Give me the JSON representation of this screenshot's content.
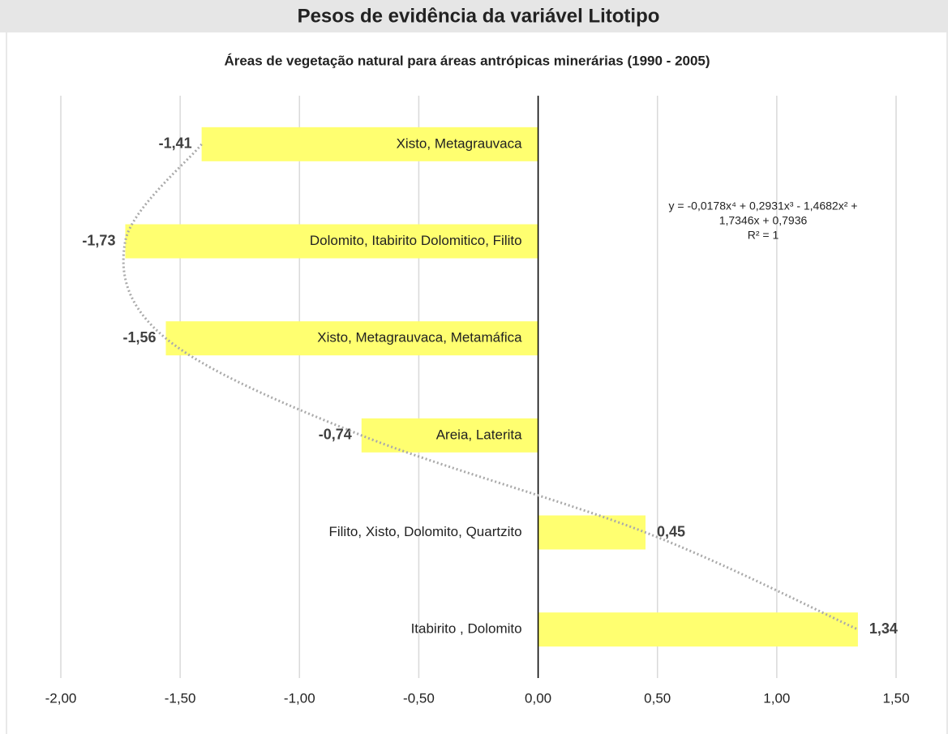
{
  "chart_data": {
    "type": "bar",
    "orientation": "horizontal",
    "title": "Pesos de evidência da variável Litotipo",
    "subtitle": "Áreas de vegetação natural para áreas antrópicas minerárias  (1990 - 2005)",
    "categories": [
      "Xisto, Metagrauvaca",
      "Dolomito, Itabirito Dolomitico, Filito",
      "Xisto, Metagrauvaca, Metamáfica",
      "Areia,  Laterita",
      "Filito, Xisto, Dolomito, Quartzito",
      "Itabirito , Dolomito"
    ],
    "values": [
      -1.41,
      -1.73,
      -1.56,
      -0.74,
      0.45,
      1.34
    ],
    "value_labels": [
      "-1,41",
      "-1,73",
      "-1,56",
      "-0,74",
      "0,45",
      "1,34"
    ],
    "color": "#ffff70",
    "xlim": [
      -2,
      1.5
    ],
    "xticks": [
      {
        "value": -2,
        "label": "-2,00"
      },
      {
        "value": -1.5,
        "label": "-1,50"
      },
      {
        "value": -1,
        "label": "-1,00"
      },
      {
        "value": -0.5,
        "label": "-0,50"
      },
      {
        "value": 0,
        "label": "0,00"
      },
      {
        "value": 0.5,
        "label": "0,50"
      },
      {
        "value": 1,
        "label": "1,00"
      },
      {
        "value": 1.5,
        "label": "1,50"
      }
    ],
    "grid": true,
    "trendline": {
      "type": "polynomial",
      "equation": [
        "y = -0,0178x⁴ + 0,2931x³ - 1,4682x² +",
        "1,7346x + 0,7936",
        "R² = 1"
      ]
    }
  }
}
